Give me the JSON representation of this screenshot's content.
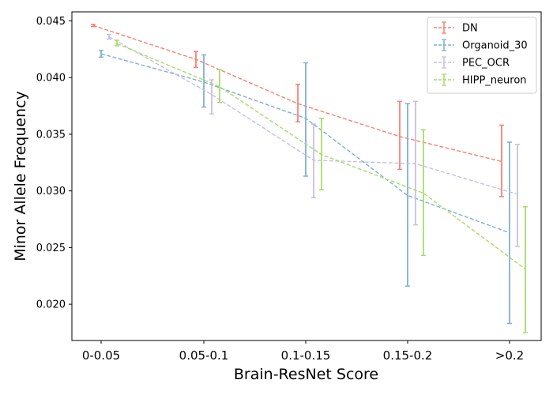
{
  "chart_data": {
    "type": "line",
    "title": "",
    "xlabel": "Brain-ResNet Score",
    "ylabel": "Minor Allele Frequency",
    "categories": [
      "0-0.05",
      "0.05-0.1",
      "0.1-0.15",
      "0.15-0.2",
      ">0.2"
    ],
    "ylim": [
      0.0168,
      0.0458
    ],
    "yticks": [
      "0.020",
      "0.025",
      "0.030",
      "0.035",
      "0.040",
      "0.045"
    ],
    "legend_position": "top-right",
    "error_bars": true,
    "series": [
      {
        "name": "DN",
        "color": "#fa8072",
        "values": [
          0.0446,
          0.0416,
          0.0377,
          0.0348,
          0.0326
        ],
        "err_low": [
          0.0445,
          0.0409,
          0.0361,
          0.0319,
          0.0295
        ],
        "err_high": [
          0.0447,
          0.0423,
          0.0394,
          0.0379,
          0.0358
        ]
      },
      {
        "name": "Organoid_30",
        "color": "#7fafd6",
        "values": [
          0.0421,
          0.0396,
          0.0364,
          0.0296,
          0.0263
        ],
        "err_low": [
          0.0418,
          0.0374,
          0.0313,
          0.0216,
          0.0183
        ],
        "err_high": [
          0.0424,
          0.042,
          0.0413,
          0.0377,
          0.0343
        ]
      },
      {
        "name": "PEC_OCR",
        "color": "#c8bfe0",
        "values": [
          0.0436,
          0.0385,
          0.0327,
          0.0324,
          0.0297
        ],
        "err_low": [
          0.0434,
          0.0368,
          0.0294,
          0.027,
          0.0251
        ],
        "err_high": [
          0.0438,
          0.0398,
          0.0359,
          0.0379,
          0.0341
        ]
      },
      {
        "name": "HIPP_neuron",
        "color": "#a8dc6a",
        "values": [
          0.043,
          0.0392,
          0.0332,
          0.0298,
          0.0231
        ],
        "err_low": [
          0.0428,
          0.0378,
          0.0301,
          0.0243,
          0.0175
        ],
        "err_high": [
          0.0433,
          0.0407,
          0.0364,
          0.0354,
          0.0286
        ]
      }
    ]
  }
}
